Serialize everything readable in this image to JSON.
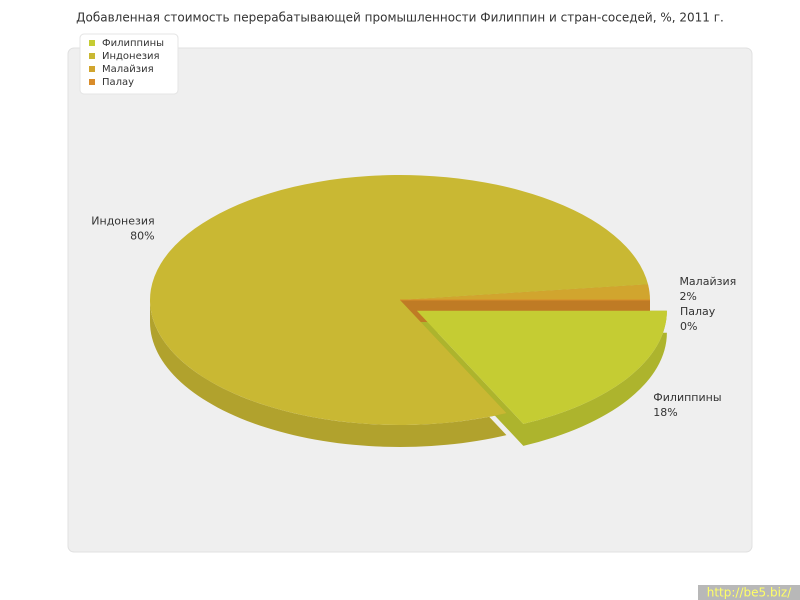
{
  "chart_data": {
    "type": "pie",
    "title": "Добавленная стоимость перерабатывающей промышленности Филиппин и стран-соседей, %, 2011 г.",
    "categories": [
      "Филиппины",
      "Индонезия",
      "Малайзия",
      "Палау"
    ],
    "values": [
      18,
      80,
      2,
      0
    ],
    "value_labels": [
      "18%",
      "80%",
      "2%",
      "0%"
    ],
    "colors": [
      "#c5cc33",
      "#c9b833",
      "#d1a52e",
      "#d98c2a"
    ],
    "legend": "top-left",
    "watermark": "http://be5.biz/"
  }
}
